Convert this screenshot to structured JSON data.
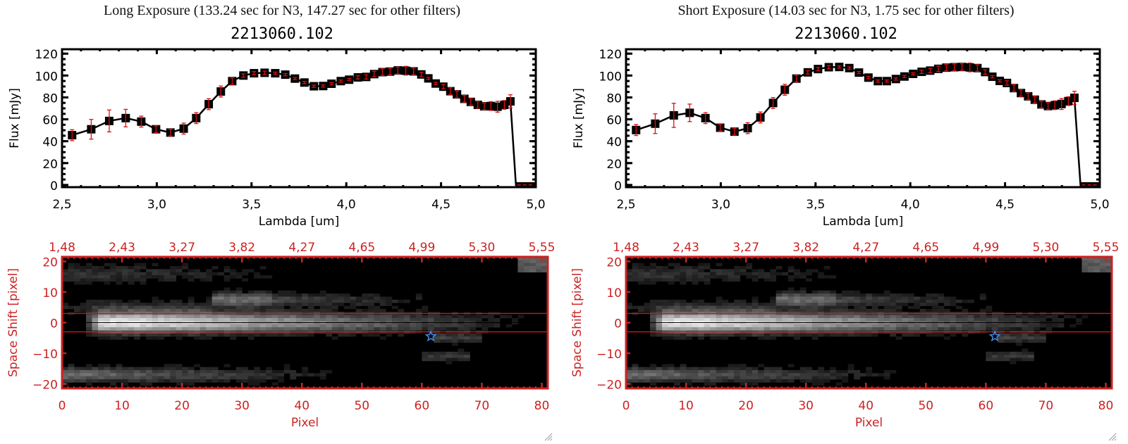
{
  "colors": {
    "spectrum_line": "#000000",
    "errorbar": "#e01010",
    "image_axes": "#cc2222",
    "aperture_lines": "#e01010",
    "center_line": "#000000",
    "star_marker": "#3a8ef0"
  },
  "chart_data": [
    {
      "panel": "left",
      "title": "Long Exposure (133.24 sec for N3, 147.27 sec for other filters)",
      "object_id": "2213060.102",
      "spectrum": {
        "type": "line",
        "xlabel": "Lambda [um]",
        "ylabel": "Flux [mJy]",
        "xlim": [
          2.5,
          5.0
        ],
        "ylim": [
          -2,
          124
        ],
        "xticks": [
          "2.5",
          "3.0",
          "3.5",
          "4.0",
          "4.5",
          "5.0"
        ],
        "yticks": [
          "0",
          "20",
          "40",
          "60",
          "80",
          "100",
          "120"
        ],
        "x": [
          2.553,
          2.654,
          2.749,
          2.836,
          2.918,
          2.996,
          3.072,
          3.142,
          3.208,
          3.274,
          3.338,
          3.398,
          3.457,
          3.513,
          3.569,
          3.625,
          3.678,
          3.729,
          3.779,
          3.829,
          3.878,
          3.922,
          3.971,
          4.015,
          4.061,
          4.105,
          4.147,
          4.191,
          4.231,
          4.272,
          4.314,
          4.355,
          4.396,
          4.433,
          4.472,
          4.512,
          4.549,
          4.584,
          4.623,
          4.657,
          4.694,
          4.728,
          4.763,
          4.798,
          4.834,
          4.866
        ],
        "y": [
          45.5,
          50.9,
          58.5,
          61.1,
          57.9,
          50.9,
          47.9,
          51.5,
          61.1,
          73.8,
          85.4,
          94.9,
          100.0,
          102.1,
          102.5,
          102.1,
          100.8,
          97.2,
          93.6,
          90.2,
          90.4,
          92.5,
          94.9,
          96.2,
          98.3,
          98.7,
          101.3,
          103.1,
          103.6,
          104.7,
          104.4,
          103.8,
          101.0,
          97.4,
          92.7,
          89.8,
          85.7,
          82.8,
          78.7,
          75.9,
          73.2,
          71.9,
          72.1,
          71.5,
          73.2,
          76.4
        ],
        "yerr": [
          5,
          9,
          10,
          8,
          5,
          3,
          3,
          5,
          5,
          5,
          5,
          3,
          1.5,
          1.5,
          1.5,
          1,
          1,
          1,
          1,
          1,
          1,
          1,
          1,
          1,
          1.5,
          2,
          2.5,
          3,
          3,
          3,
          4,
          3,
          2,
          1,
          1,
          2,
          3,
          3,
          3,
          3,
          3,
          3,
          4,
          5,
          4,
          6
        ],
        "tail": {
          "x": [
            4.866,
            4.895,
            5.0
          ],
          "y": [
            76.4,
            0,
            0
          ]
        }
      },
      "image": {
        "type": "heatmap",
        "xlabel": "Pixel",
        "ylabel": "Space Shift [pixel]",
        "xlim": [
          0,
          81
        ],
        "ylim": [
          -21.5,
          21.5
        ],
        "xticks": [
          "0",
          "10",
          "20",
          "30",
          "40",
          "50",
          "60",
          "70",
          "80"
        ],
        "yticks": [
          "-20",
          "-10",
          "0",
          "10",
          "20"
        ],
        "top_ticks": [
          "1.48",
          "2.43",
          "3.27",
          "3.82",
          "4.27",
          "4.65",
          "4.99",
          "5.30",
          "5.55"
        ],
        "aperture": [
          -3,
          3
        ],
        "star": {
          "x": 61.5,
          "y": -4.5
        }
      }
    },
    {
      "panel": "right",
      "title": "Short Exposure (14.03 sec for N3, 1.75 sec for other filters)",
      "object_id": "2213060.102",
      "spectrum": {
        "type": "line",
        "xlabel": "Lambda [um]",
        "ylabel": "Flux [mJy]",
        "xlim": [
          2.5,
          5.0
        ],
        "ylim": [
          -2,
          124
        ],
        "xticks": [
          "2.5",
          "3.0",
          "3.5",
          "4.0",
          "4.5",
          "5.0"
        ],
        "yticks": [
          "0",
          "20",
          "40",
          "60",
          "80",
          "100",
          "120"
        ],
        "x": [
          2.553,
          2.654,
          2.752,
          2.836,
          2.919,
          2.997,
          3.072,
          3.142,
          3.209,
          3.276,
          3.338,
          3.399,
          3.459,
          3.513,
          3.57,
          3.625,
          3.678,
          3.729,
          3.779,
          3.829,
          3.876,
          3.924,
          3.969,
          4.015,
          4.06,
          4.105,
          4.148,
          4.19,
          4.232,
          4.273,
          4.314,
          4.354,
          4.395,
          4.433,
          4.472,
          4.51,
          4.547,
          4.584,
          4.622,
          4.657,
          4.692,
          4.727,
          4.763,
          4.798,
          4.834,
          4.866
        ],
        "y": [
          50.2,
          56.0,
          63.6,
          65.9,
          61.1,
          52.3,
          48.7,
          51.9,
          61.7,
          74.9,
          87.0,
          97.2,
          102.9,
          105.9,
          107.6,
          107.8,
          106.8,
          102.7,
          98.1,
          94.9,
          94.9,
          96.8,
          99.1,
          101.5,
          103.4,
          104.5,
          106.1,
          107.2,
          107.6,
          107.8,
          107.4,
          106.8,
          103.2,
          98.9,
          95.1,
          93.2,
          88.5,
          84.0,
          81.0,
          77.9,
          73.6,
          72.1,
          72.9,
          74.0,
          76.6,
          79.6
        ],
        "yerr": [
          5,
          9,
          11,
          8,
          5,
          3,
          3,
          5,
          5,
          5,
          5,
          3,
          1.5,
          1.5,
          1.5,
          1,
          1,
          1,
          1,
          1,
          1,
          1,
          1,
          1,
          1.5,
          2,
          2.5,
          3,
          3,
          3,
          4,
          3,
          2,
          1,
          1,
          2,
          3,
          3,
          3,
          3,
          3,
          3,
          4,
          5,
          4,
          6
        ],
        "tail": {
          "x": [
            4.866,
            4.898,
            5.0
          ],
          "y": [
            79.6,
            0,
            0
          ]
        }
      },
      "image": {
        "type": "heatmap",
        "xlabel": "Pixel",
        "ylabel": "Space Shift [pixel]",
        "xlim": [
          0,
          81
        ],
        "ylim": [
          -21.5,
          21.5
        ],
        "xticks": [
          "0",
          "10",
          "20",
          "30",
          "40",
          "50",
          "60",
          "70",
          "80"
        ],
        "yticks": [
          "-20",
          "-10",
          "0",
          "10",
          "20"
        ],
        "top_ticks": [
          "1.48",
          "2.43",
          "3.27",
          "3.82",
          "4.27",
          "4.65",
          "4.99",
          "5.30",
          "5.55"
        ],
        "aperture": [
          -3,
          3
        ],
        "star": {
          "x": 61.5,
          "y": -4.5
        }
      }
    }
  ]
}
